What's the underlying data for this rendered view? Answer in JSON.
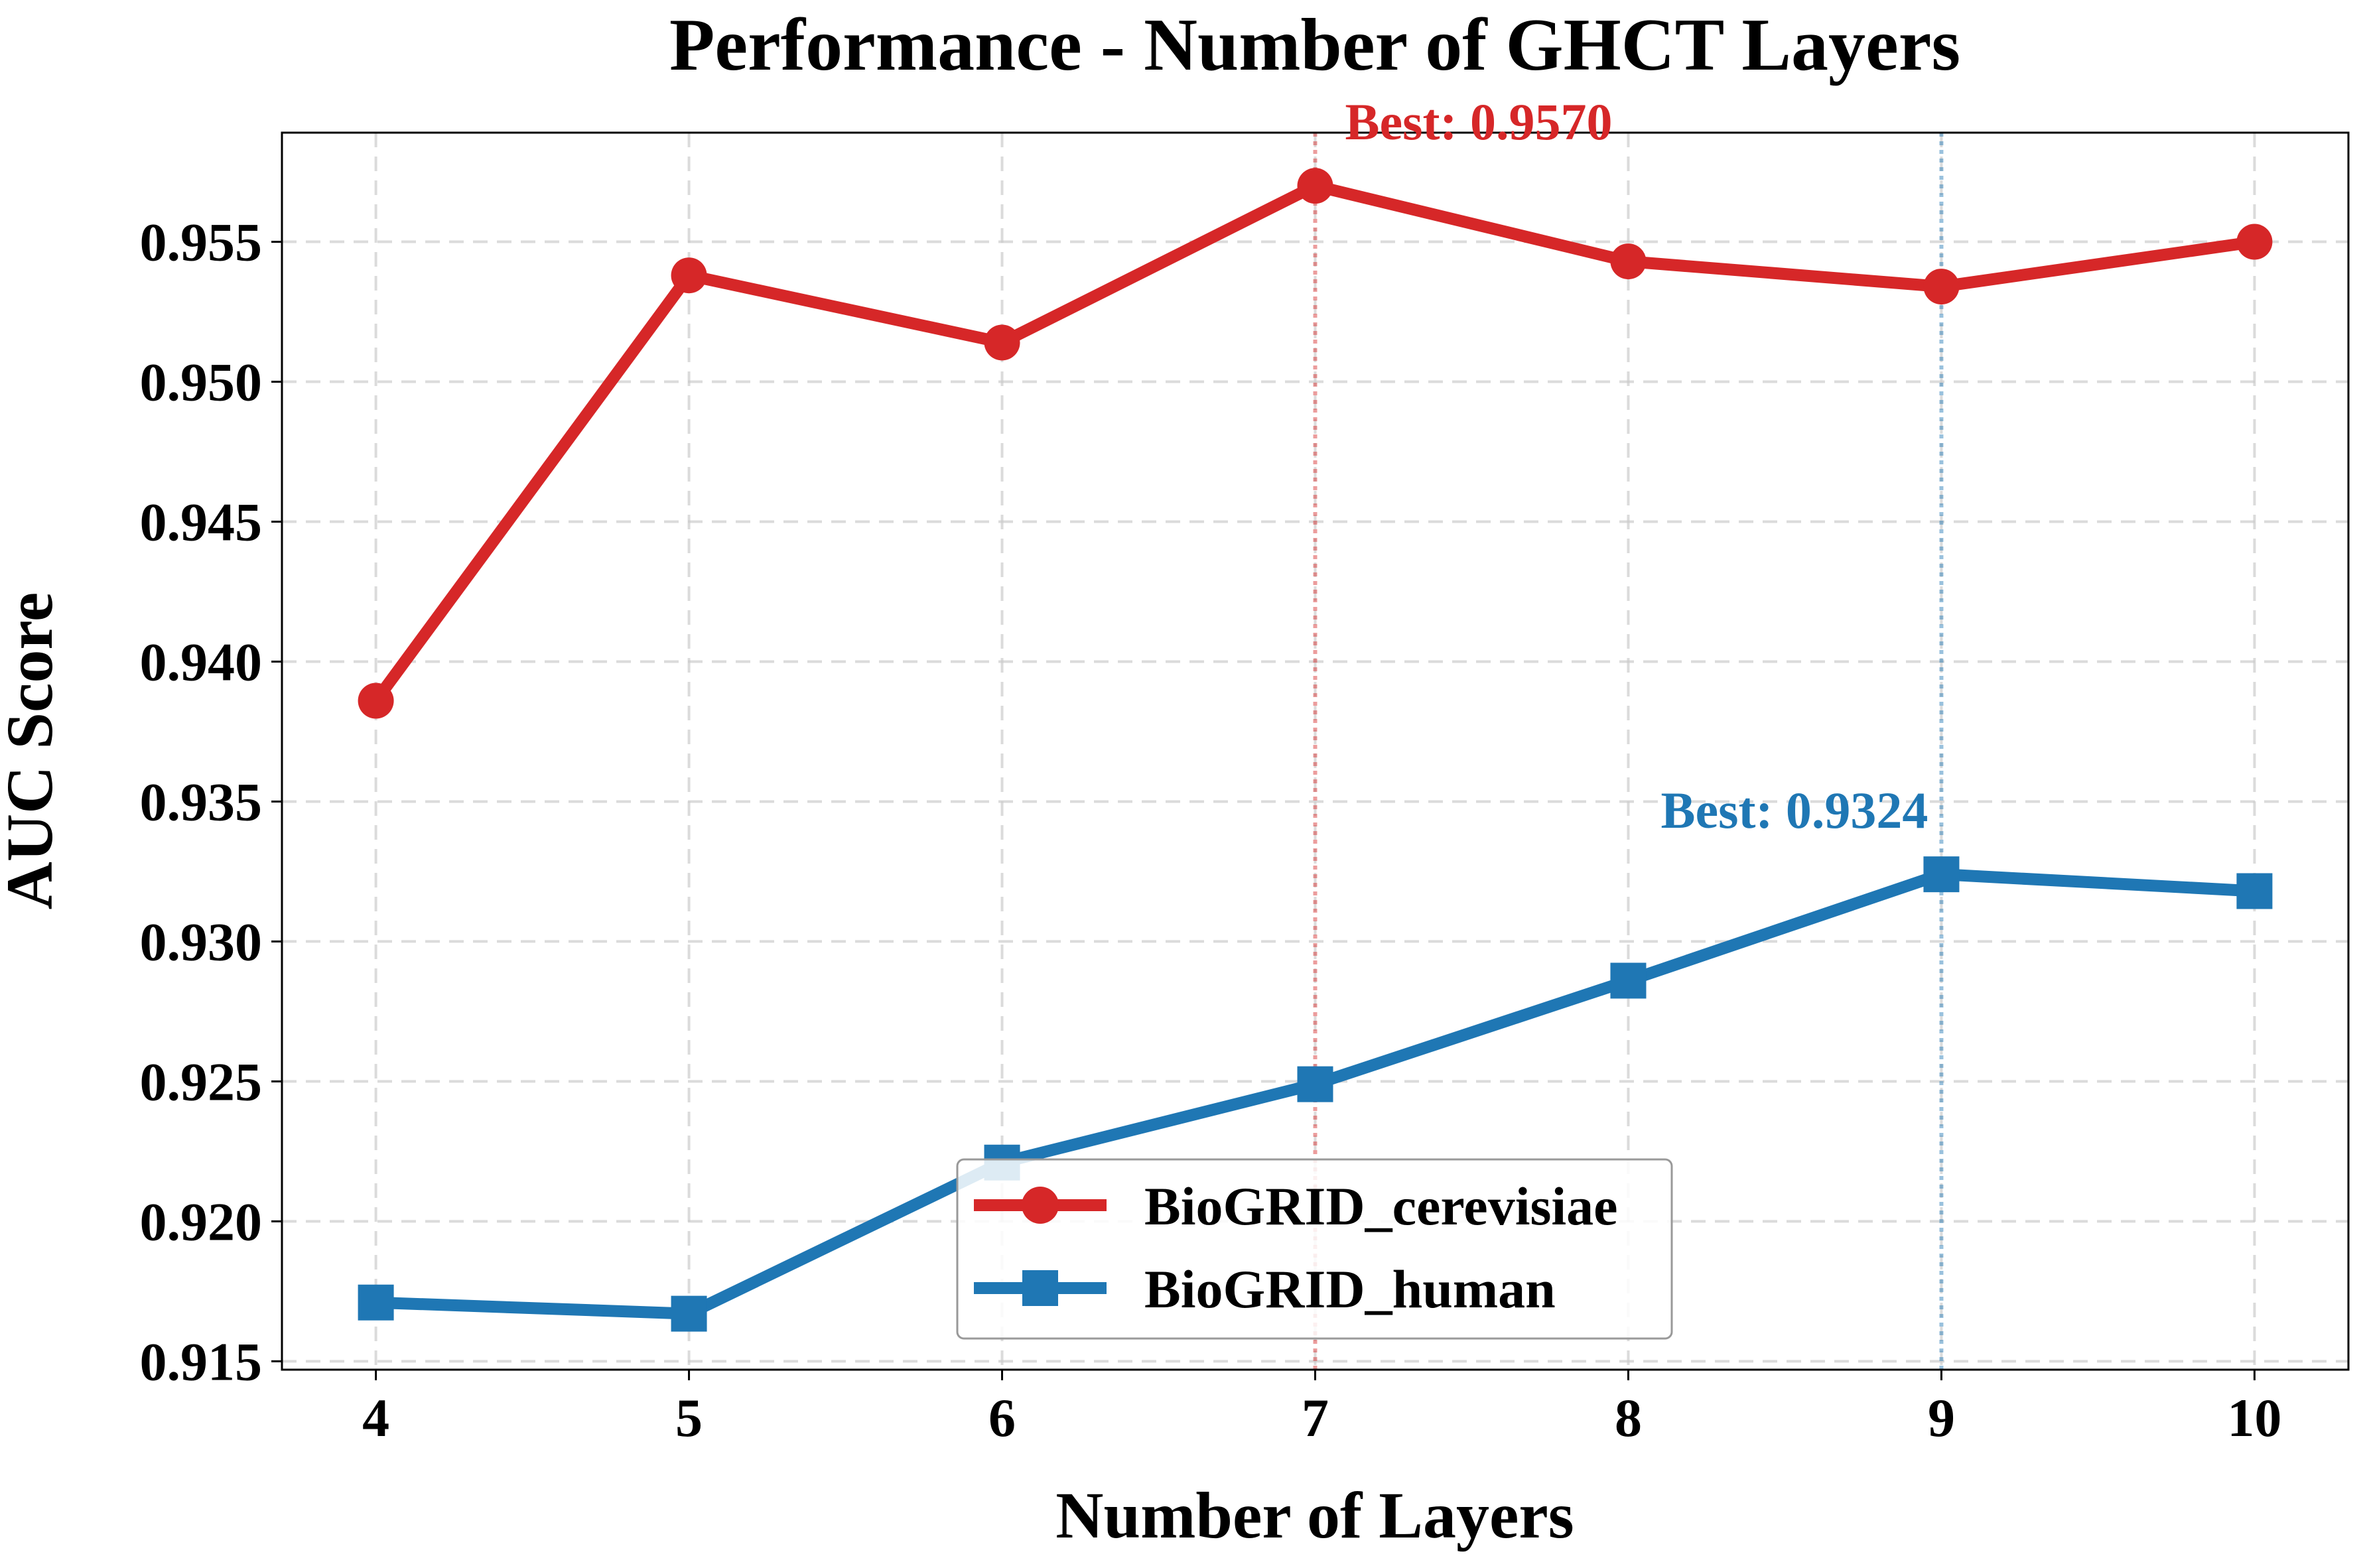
{
  "chart_data": {
    "type": "line",
    "title": "Performance - Number of GHCT Layers",
    "xlabel": "Number of Layers",
    "ylabel": "AUC Score",
    "x": [
      4,
      5,
      6,
      7,
      8,
      9,
      10
    ],
    "x_ticks": [
      "4",
      "5",
      "6",
      "7",
      "8",
      "9",
      "10"
    ],
    "xlim": [
      3.7,
      10.3
    ],
    "y_ticks": [
      "0.915",
      "0.920",
      "0.925",
      "0.930",
      "0.935",
      "0.940",
      "0.945",
      "0.950",
      "0.955"
    ],
    "ylim": [
      0.9147,
      0.9589
    ],
    "grid": true,
    "legend_position": "lower center",
    "series": [
      {
        "name": "BioGRID_cerevisiae",
        "color": "#d62728",
        "marker": "circle",
        "values": [
          0.9386,
          0.9538,
          0.9514,
          0.957,
          0.9543,
          0.9534,
          0.955
        ],
        "best_x": 7,
        "best_label": "Best: 0.9570"
      },
      {
        "name": "BioGRID_human",
        "color": "#1f77b4",
        "marker": "square",
        "values": [
          0.9171,
          0.9167,
          0.9221,
          0.9249,
          0.9286,
          0.9324,
          0.9318
        ],
        "best_x": 9,
        "best_label": "Best: 0.9324"
      }
    ]
  }
}
